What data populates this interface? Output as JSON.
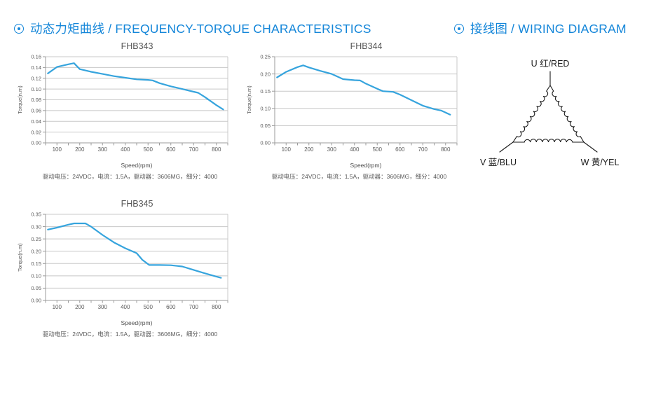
{
  "sections": {
    "torque": {
      "title": "动态力矩曲线 / FREQUENCY-TORQUE CHARACTERISTICS"
    },
    "wiring": {
      "title": "接线图 / WIRING DIAGRAM"
    }
  },
  "colors": {
    "accent": "#1486d9",
    "curve": "#36a4dd",
    "grid": "#c8c8c8",
    "axis": "#9b9b9b",
    "tick_text": "#595959",
    "diagram_stroke": "#1a1a1a"
  },
  "chart_data": [
    {
      "type": "line",
      "title": "FHB343",
      "xlabel": "Speed(rpm)",
      "ylabel": "Torque(n.m)",
      "xlim": [
        50,
        850
      ],
      "ylim": [
        0,
        0.16
      ],
      "ytick_step": 0.02,
      "xticks": [
        100,
        200,
        300,
        400,
        500,
        600,
        700,
        800
      ],
      "xtick_minor_step": 50,
      "grid": true,
      "legend": false,
      "caption": "驱动电压：24VDC，电流：1.5A，驱动器：3606MG，细分：4000",
      "x": [
        60,
        100,
        150,
        175,
        200,
        250,
        300,
        350,
        400,
        450,
        500,
        520,
        550,
        600,
        650,
        700,
        720,
        750,
        800,
        830
      ],
      "y": [
        0.129,
        0.141,
        0.146,
        0.148,
        0.137,
        0.132,
        0.128,
        0.124,
        0.121,
        0.118,
        0.117,
        0.116,
        0.111,
        0.105,
        0.1,
        0.095,
        0.093,
        0.085,
        0.07,
        0.062
      ]
    },
    {
      "type": "line",
      "title": "FHB344",
      "xlabel": "Speed(rpm)",
      "ylabel": "Torque(n.m)",
      "xlim": [
        50,
        850
      ],
      "ylim": [
        0,
        0.25
      ],
      "ytick_step": 0.05,
      "xticks": [
        100,
        200,
        300,
        400,
        500,
        600,
        700,
        800
      ],
      "xtick_minor_step": 50,
      "grid": true,
      "legend": false,
      "caption": "驱动电压：24VDC，电流：1.5A，驱动器：3606MG，细分：4000",
      "x": [
        60,
        100,
        150,
        175,
        200,
        250,
        300,
        350,
        400,
        425,
        450,
        500,
        525,
        570,
        600,
        650,
        700,
        750,
        780,
        820
      ],
      "y": [
        0.19,
        0.206,
        0.22,
        0.225,
        0.219,
        0.209,
        0.2,
        0.185,
        0.182,
        0.181,
        0.172,
        0.157,
        0.15,
        0.148,
        0.14,
        0.124,
        0.108,
        0.098,
        0.094,
        0.082
      ]
    },
    {
      "type": "line",
      "title": "FHB345",
      "xlabel": "Speed(rpm)",
      "ylabel": "Torque(n.m)",
      "xlim": [
        50,
        850
      ],
      "ylim": [
        0,
        0.35
      ],
      "ytick_step": 0.05,
      "xticks": [
        100,
        200,
        300,
        400,
        500,
        600,
        700,
        800
      ],
      "xtick_minor_step": 50,
      "grid": true,
      "legend": false,
      "caption": "驱动电压：24VDC，电流：1.5A，驱动器：3606MG，细分：4000",
      "x": [
        60,
        100,
        150,
        175,
        225,
        250,
        300,
        350,
        400,
        450,
        475,
        505,
        550,
        600,
        650,
        700,
        750,
        800,
        820
      ],
      "y": [
        0.288,
        0.296,
        0.308,
        0.313,
        0.313,
        0.3,
        0.266,
        0.236,
        0.212,
        0.192,
        0.165,
        0.144,
        0.144,
        0.143,
        0.138,
        0.124,
        0.11,
        0.097,
        0.092
      ]
    }
  ],
  "wiring": {
    "u_label": "U 红/RED",
    "v_label": "V 蓝/BLU",
    "w_label": "W 黄/YEL"
  }
}
